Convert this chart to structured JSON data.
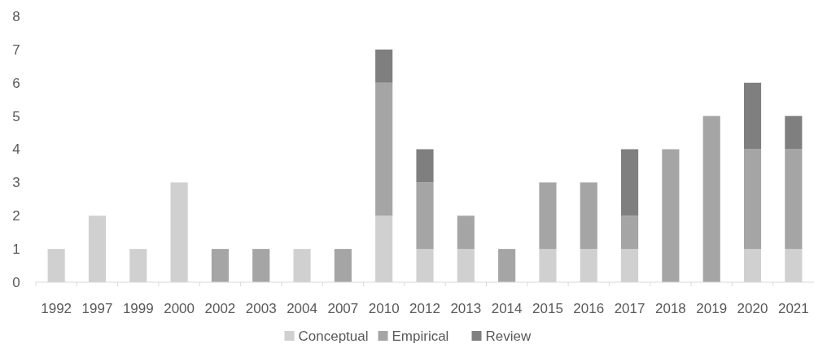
{
  "chart_data": {
    "type": "bar",
    "stacked": true,
    "categories": [
      "1992",
      "1997",
      "1999",
      "2000",
      "2002",
      "2003",
      "2004",
      "2007",
      "2010",
      "2012",
      "2013",
      "2014",
      "2015",
      "2016",
      "2017",
      "2018",
      "2019",
      "2020",
      "2021"
    ],
    "series": [
      {
        "name": "Conceptual",
        "color": "#d0d0d0",
        "values": [
          1,
          2,
          1,
          3,
          0,
          0,
          1,
          0,
          2,
          1,
          1,
          0,
          1,
          1,
          1,
          0,
          0,
          1,
          1
        ]
      },
      {
        "name": "Empirical",
        "color": "#a5a5a5",
        "values": [
          0,
          0,
          0,
          0,
          1,
          1,
          0,
          1,
          4,
          2,
          1,
          1,
          2,
          2,
          1,
          4,
          5,
          3,
          3
        ]
      },
      {
        "name": "Review",
        "color": "#7f7f7f",
        "values": [
          0,
          0,
          0,
          0,
          0,
          0,
          0,
          0,
          1,
          1,
          0,
          0,
          0,
          0,
          2,
          0,
          0,
          2,
          1
        ]
      }
    ],
    "ylim": [
      0,
      8
    ],
    "yticks": [
      0,
      1,
      2,
      3,
      4,
      5,
      6,
      7,
      8
    ],
    "legend": "bottom"
  }
}
